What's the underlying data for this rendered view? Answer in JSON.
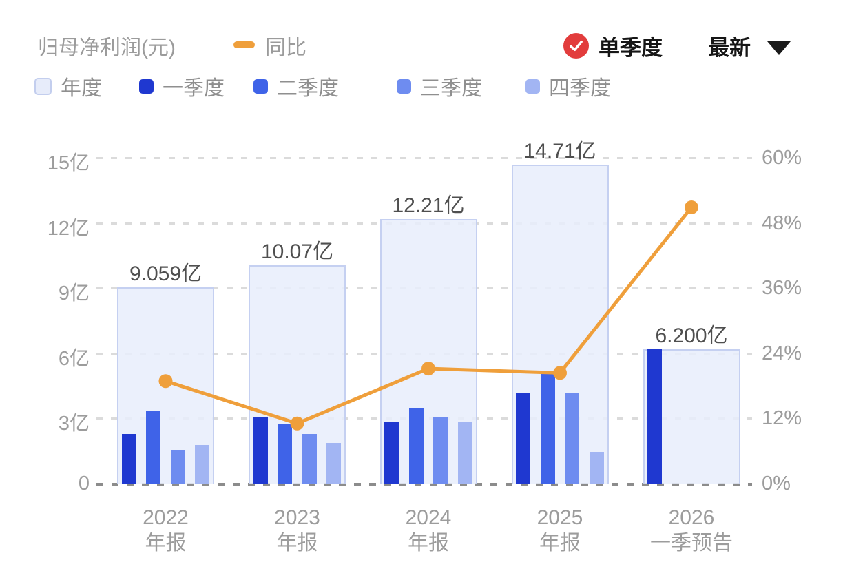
{
  "header": {
    "title": "归母净利润(元)",
    "yoy_legend_label": "同比",
    "single_quarter_label": "单季度",
    "latest_label": "最新",
    "check_color": "#E23C3C",
    "accent_orange": "#EF9F3B"
  },
  "legend": {
    "items": [
      {
        "label": "年度",
        "color": "#E7ECFA",
        "border": "#C3CEEE"
      },
      {
        "label": "一季度",
        "color": "#1F38D0",
        "border": null
      },
      {
        "label": "二季度",
        "color": "#3F63E8",
        "border": null
      },
      {
        "label": "三季度",
        "color": "#6E8CF0",
        "border": null
      },
      {
        "label": "四季度",
        "color": "#A2B5F3",
        "border": null
      }
    ]
  },
  "chart_data": {
    "type": "bar+line",
    "title": "归母净利润(元)",
    "categories": [
      "2022 年报",
      "2023 年报",
      "2024 年报",
      "2025 年报",
      "2026 一季预告"
    ],
    "category_lines": [
      [
        "2022",
        "年报"
      ],
      [
        "2023",
        "年报"
      ],
      [
        "2024",
        "年报"
      ],
      [
        "2025",
        "年报"
      ],
      [
        "2026",
        "一季预告"
      ]
    ],
    "annual_totals_yi": [
      9.059,
      10.07,
      12.21,
      14.71,
      6.2
    ],
    "annual_labels": [
      "9.059亿",
      "10.07亿",
      "12.21亿",
      "14.71亿",
      "6.200亿"
    ],
    "annual_bar_color": "#E8EDFB",
    "annual_bar_border": "#C5D0F1",
    "quarterly_series": [
      {
        "name": "一季度",
        "color": "#1F38D0",
        "values_yi": [
          2.3,
          3.1,
          2.9,
          4.2,
          6.2
        ]
      },
      {
        "name": "二季度",
        "color": "#3F63E8",
        "values_yi": [
          3.4,
          2.8,
          3.5,
          5.1,
          null
        ]
      },
      {
        "name": "三季度",
        "color": "#6E8CF0",
        "values_yi": [
          1.6,
          2.3,
          3.1,
          4.2,
          null
        ]
      },
      {
        "name": "四季度",
        "color": "#A2B5F3",
        "values_yi": [
          1.8,
          1.9,
          2.9,
          1.5,
          null
        ]
      }
    ],
    "yoy_line": {
      "name": "同比",
      "color": "#EF9F3B",
      "values_pct": [
        19.0,
        11.2,
        21.3,
        20.5,
        51.0
      ]
    },
    "left_axis": {
      "unit": "亿",
      "ticks": [
        "15亿",
        "12亿",
        "9亿",
        "6亿",
        "3亿",
        "0"
      ],
      "tick_values": [
        15,
        12,
        9,
        6,
        3,
        0
      ],
      "range": [
        0,
        15
      ]
    },
    "right_axis": {
      "unit": "%",
      "ticks": [
        "60%",
        "48%",
        "36%",
        "24%",
        "12%",
        "0%"
      ],
      "tick_values": [
        60,
        48,
        36,
        24,
        12,
        0
      ],
      "range": [
        0,
        60
      ]
    },
    "grid": "dashed-horizontal",
    "legend_position": "top-left"
  }
}
